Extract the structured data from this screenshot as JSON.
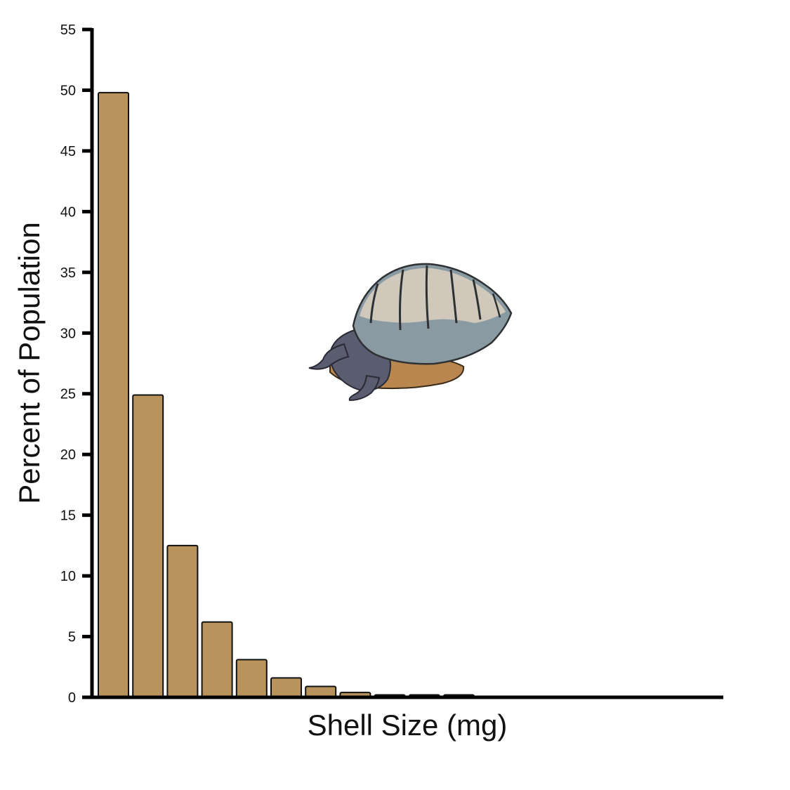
{
  "chart_data": {
    "type": "bar",
    "title": "",
    "xlabel": "Shell Size (mg)",
    "ylabel": "Percent of Population",
    "ylim": [
      0,
      55
    ],
    "yticks": [
      0,
      5,
      10,
      15,
      20,
      25,
      30,
      35,
      40,
      45,
      50,
      55
    ],
    "values": [
      49.8,
      24.9,
      12.5,
      6.2,
      3.1,
      1.6,
      0.9,
      0.4,
      0.2,
      0.2,
      0.2
    ],
    "grid": false,
    "bar_color": "#b8945c"
  },
  "illustration": {
    "icon": "snail-icon"
  }
}
